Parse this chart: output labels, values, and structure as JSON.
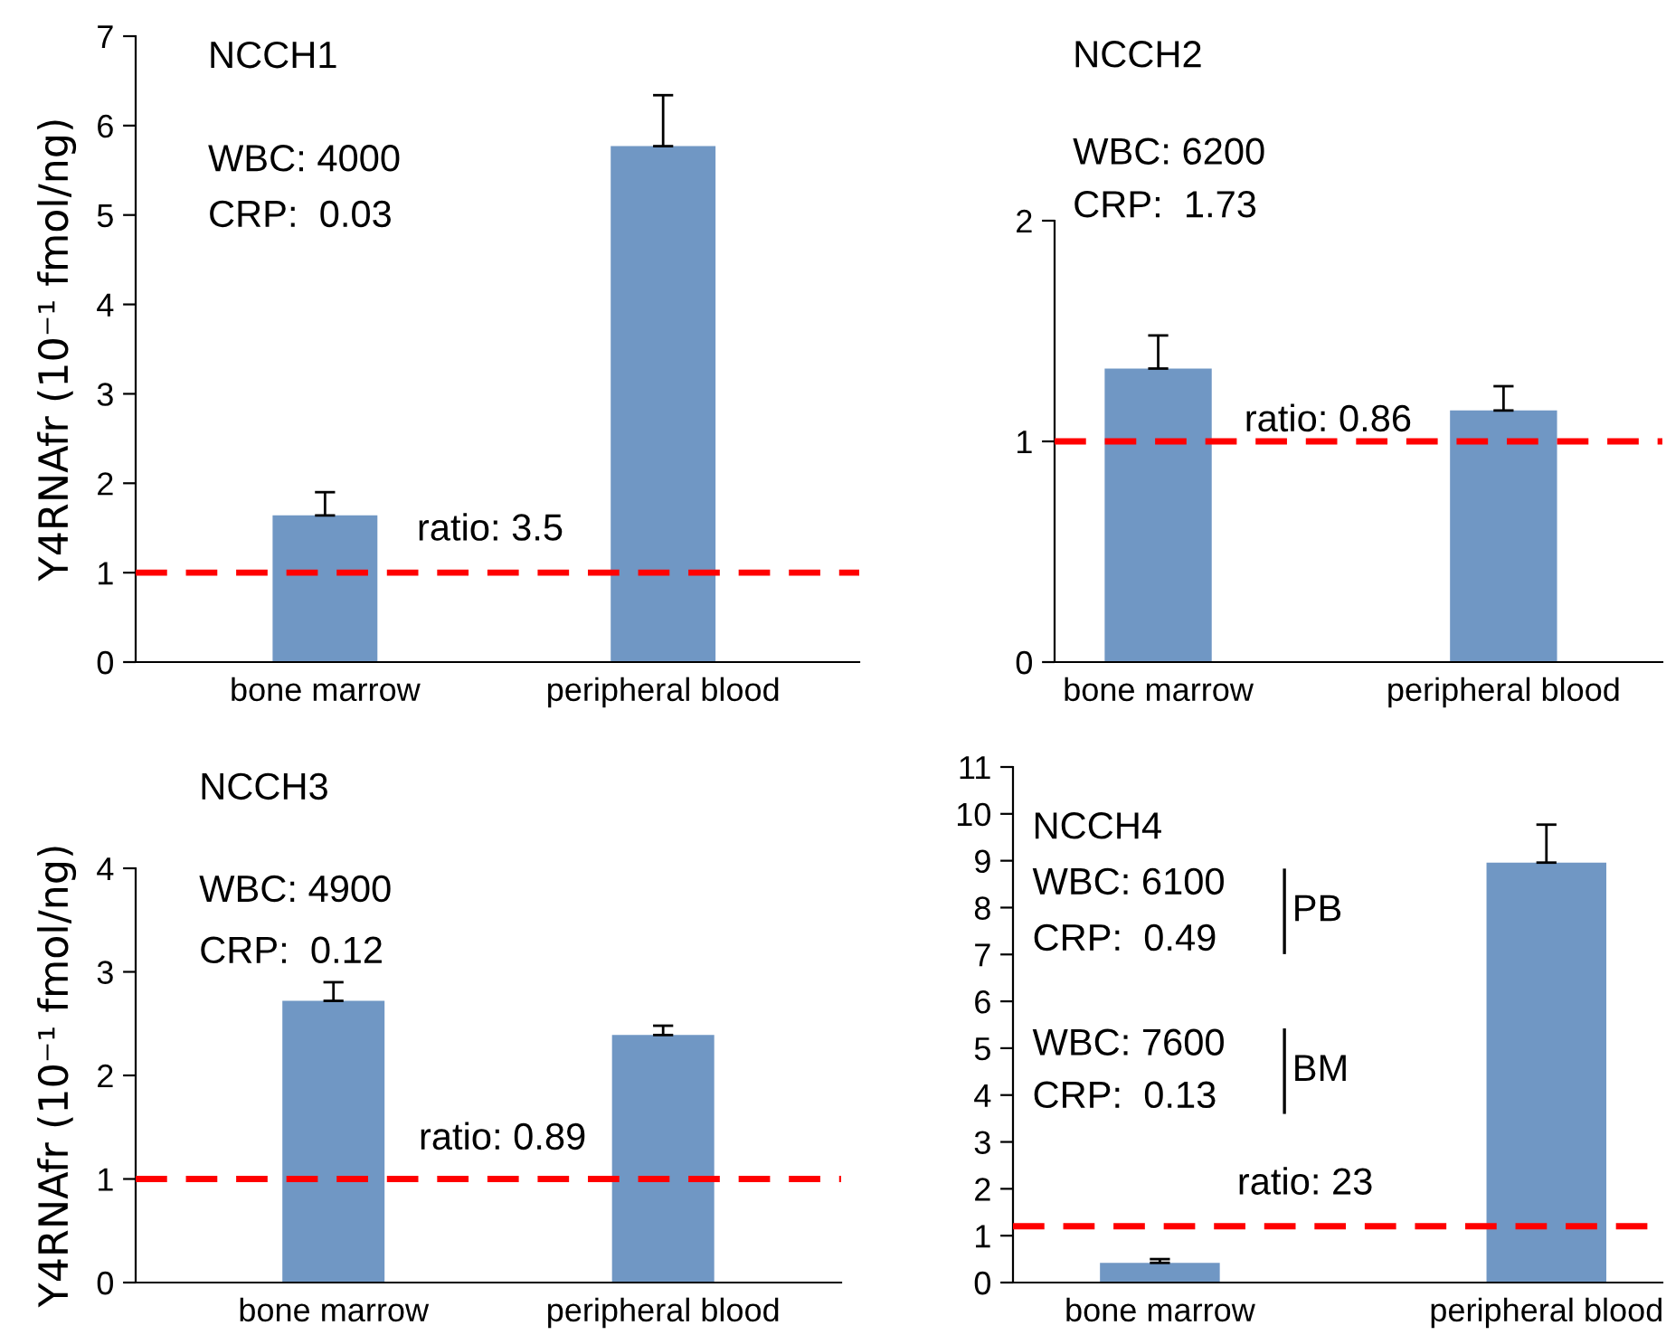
{
  "chart_data": [
    {
      "type": "bar",
      "title": "NCCH1",
      "ylabel": "Y4RNAfr (10⁻¹ fmol/ng)",
      "categories": [
        "bone marrow",
        "peripheral blood"
      ],
      "values": [
        1.64,
        5.77
      ],
      "errors": [
        [
          1.64,
          1.9
        ],
        [
          5.77,
          6.34
        ]
      ],
      "color": "#7097c4",
      "ylim": [
        0,
        7
      ],
      "yticks": [
        0,
        1,
        2,
        3,
        4,
        5,
        6,
        7
      ],
      "grid": false,
      "ref_lines": [
        {
          "axis": "y",
          "value": 1,
          "color": "#ff0000",
          "line_style": "dashed"
        }
      ],
      "annotations": [
        "WBC: 4000",
        "CRP:  0.03",
        "ratio: 3.5"
      ]
    },
    {
      "type": "bar",
      "title": "NCCH2",
      "categories": [
        "bone marrow",
        "peripheral blood"
      ],
      "values": [
        1.33,
        1.14
      ],
      "errors": [
        [
          1.33,
          1.48
        ],
        [
          1.14,
          1.25
        ]
      ],
      "color": "#7097c4",
      "ylim": [
        0,
        2
      ],
      "yticks": [
        0,
        1,
        2
      ],
      "grid": false,
      "ref_lines": [
        {
          "axis": "y",
          "value": 1,
          "color": "#ff0000",
          "line_style": "dashed"
        }
      ],
      "annotations": [
        "WBC: 6200",
        "CRP:  1.73",
        "ratio: 0.86"
      ]
    },
    {
      "type": "bar",
      "title": "NCCH3",
      "ylabel": "Y4RNAfr (10⁻¹ fmol/ng)",
      "categories": [
        "bone marrow",
        "peripheral blood"
      ],
      "values": [
        2.72,
        2.39
      ],
      "errors": [
        [
          2.72,
          2.9
        ],
        [
          2.39,
          2.48
        ]
      ],
      "color": "#7097c4",
      "ylim": [
        0,
        4
      ],
      "yticks": [
        0,
        1,
        2,
        3,
        4
      ],
      "grid": false,
      "ref_lines": [
        {
          "axis": "y",
          "value": 1,
          "color": "#ff0000",
          "line_style": "dashed"
        }
      ],
      "annotations": [
        "WBC: 4900",
        "CRP:  0.12",
        "ratio: 0.89"
      ]
    },
    {
      "type": "bar",
      "title": "NCCH4",
      "categories": [
        "bone marrow",
        "peripheral blood"
      ],
      "values": [
        0.42,
        8.96
      ],
      "errors": [
        [
          0.42,
          0.5
        ],
        [
          8.96,
          9.77
        ]
      ],
      "color": "#7097c4",
      "ylim": [
        0,
        11
      ],
      "yticks": [
        0,
        1,
        2,
        3,
        4,
        5,
        6,
        7,
        8,
        9,
        10,
        11
      ],
      "grid": false,
      "ref_lines": [
        {
          "axis": "y",
          "value": 1.2,
          "color": "#ff0000",
          "line_style": "dashed"
        }
      ],
      "annotations": [
        "WBC: 6100",
        "CRP:  0.49",
        "PB",
        "WBC: 7600",
        "CRP:  0.13",
        "BM",
        "ratio: 23"
      ]
    }
  ]
}
